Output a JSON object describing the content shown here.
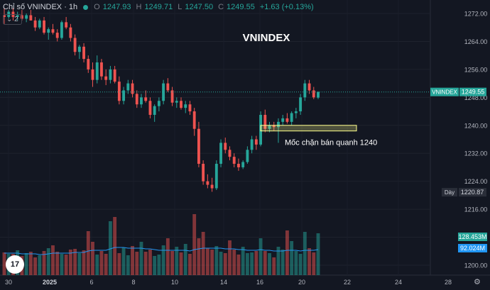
{
  "legend": {
    "title": "Chỉ số VNINDEX · 1h",
    "o_label": "O",
    "o": "1247.93",
    "h_label": "H",
    "h": "1249.71",
    "l_label": "L",
    "l": "1247.50",
    "c_label": "C",
    "c": "1249.55",
    "change": "+1.63 (+0.13%)",
    "collapse": "2"
  },
  "tv_logo": "17",
  "gear_icon": "gear-icon",
  "colors": {
    "up": "#26a69a",
    "down": "#ef5350",
    "background": "#131722",
    "annotation": "#ffff8d",
    "ma_line": "#2196f3"
  },
  "chart_data": {
    "type": "candlestick",
    "title": "VNINDEX",
    "xlabel": "",
    "ylabel": "",
    "ylim": [
      1197,
      1275
    ],
    "y_ticks": [
      "1272.00",
      "1264.00",
      "1256.00",
      "1248.00",
      "1240.00",
      "1232.00",
      "1224.00",
      "1216.00",
      "1208.00",
      "1200.00"
    ],
    "x_ticks": [
      "30",
      "2025",
      "6",
      "8",
      "10",
      "14",
      "16",
      "20",
      "22",
      "24",
      "28"
    ],
    "price_tags": [
      {
        "label": "VNINDEX",
        "value": "1249.55",
        "y": 1249.55
      },
      {
        "label": "Dày",
        "value": "1220.87",
        "y": 1220.87
      }
    ],
    "volume_tags": [
      "128.453M",
      "92.024M"
    ],
    "annotation": {
      "text": "Mốc chặn bán quanh 1240",
      "y_low": 1238.8,
      "y_high": 1239.6
    },
    "candles": [
      [
        1271.5,
        1273.5,
        1269.0,
        1271.0
      ],
      [
        1271.0,
        1273.0,
        1270.5,
        1272.5
      ],
      [
        1272.5,
        1273.5,
        1270.0,
        1271.0
      ],
      [
        1271.0,
        1272.5,
        1270.0,
        1271.5
      ],
      [
        1271.5,
        1273.0,
        1270.0,
        1270.5
      ],
      [
        1270.5,
        1272.0,
        1269.5,
        1271.5
      ],
      [
        1271.5,
        1273.0,
        1270.0,
        1270.0
      ],
      [
        1270.0,
        1271.0,
        1267.0,
        1268.0
      ],
      [
        1268.0,
        1270.5,
        1267.5,
        1270.0
      ],
      [
        1270.0,
        1271.0,
        1266.0,
        1266.5
      ],
      [
        1266.5,
        1268.0,
        1264.5,
        1267.5
      ],
      [
        1267.5,
        1269.0,
        1266.0,
        1266.5
      ],
      [
        1266.5,
        1267.5,
        1264.0,
        1265.0
      ],
      [
        1265.0,
        1270.0,
        1264.5,
        1269.5
      ],
      [
        1269.5,
        1271.0,
        1267.5,
        1268.0
      ],
      [
        1268.0,
        1269.0,
        1264.0,
        1265.0
      ],
      [
        1265.0,
        1266.0,
        1260.0,
        1261.0
      ],
      [
        1261.0,
        1263.0,
        1259.0,
        1262.5
      ],
      [
        1262.5,
        1263.5,
        1258.0,
        1259.0
      ],
      [
        1259.0,
        1260.0,
        1255.0,
        1256.0
      ],
      [
        1256.0,
        1258.0,
        1251.0,
        1253.0
      ],
      [
        1253.0,
        1260.0,
        1252.0,
        1258.0
      ],
      [
        1258.0,
        1259.0,
        1253.0,
        1254.0
      ],
      [
        1254.0,
        1256.0,
        1251.5,
        1253.0
      ],
      [
        1253.0,
        1257.0,
        1252.0,
        1256.0
      ],
      [
        1256.0,
        1257.0,
        1252.0,
        1252.5
      ],
      [
        1252.5,
        1254.0,
        1246.0,
        1247.0
      ],
      [
        1247.0,
        1251.0,
        1246.0,
        1250.0
      ],
      [
        1250.0,
        1253.0,
        1249.0,
        1252.0
      ],
      [
        1252.0,
        1253.0,
        1248.0,
        1249.0
      ],
      [
        1249.0,
        1250.0,
        1245.0,
        1246.0
      ],
      [
        1246.0,
        1249.0,
        1245.0,
        1248.0
      ],
      [
        1248.0,
        1250.0,
        1246.5,
        1247.0
      ],
      [
        1247.0,
        1248.0,
        1242.0,
        1243.0
      ],
      [
        1243.0,
        1246.0,
        1241.0,
        1245.5
      ],
      [
        1245.5,
        1248.0,
        1244.0,
        1247.0
      ],
      [
        1247.0,
        1253.0,
        1246.0,
        1252.0
      ],
      [
        1252.0,
        1253.5,
        1249.5,
        1250.0
      ],
      [
        1250.0,
        1251.0,
        1245.5,
        1246.5
      ],
      [
        1246.5,
        1248.0,
        1245.0,
        1247.0
      ],
      [
        1247.0,
        1248.0,
        1244.5,
        1245.0
      ],
      [
        1245.0,
        1247.0,
        1243.5,
        1246.0
      ],
      [
        1246.0,
        1247.0,
        1243.0,
        1244.0
      ],
      [
        1244.0,
        1245.0,
        1237.0,
        1239.0
      ],
      [
        1239.0,
        1241.0,
        1228.0,
        1229.0
      ],
      [
        1229.0,
        1230.0,
        1223.0,
        1224.0
      ],
      [
        1224.0,
        1226.0,
        1222.0,
        1223.0
      ],
      [
        1223.0,
        1225.0,
        1221.0,
        1222.0
      ],
      [
        1222.0,
        1230.0,
        1221.5,
        1229.0
      ],
      [
        1229.0,
        1236.0,
        1228.0,
        1235.0
      ],
      [
        1235.0,
        1236.5,
        1232.0,
        1233.0
      ],
      [
        1233.0,
        1234.0,
        1230.0,
        1231.0
      ],
      [
        1231.0,
        1232.0,
        1228.0,
        1229.0
      ],
      [
        1229.0,
        1230.5,
        1227.0,
        1228.0
      ],
      [
        1228.0,
        1230.0,
        1227.5,
        1229.5
      ],
      [
        1229.5,
        1234.0,
        1229.0,
        1233.0
      ],
      [
        1233.0,
        1237.0,
        1232.0,
        1236.0
      ],
      [
        1236.0,
        1237.0,
        1233.0,
        1234.5
      ],
      [
        1234.5,
        1244.0,
        1234.0,
        1243.0
      ],
      [
        1243.0,
        1244.5,
        1238.0,
        1239.0
      ],
      [
        1239.0,
        1241.0,
        1238.0,
        1240.0
      ],
      [
        1240.0,
        1241.0,
        1238.5,
        1239.5
      ],
      [
        1239.5,
        1242.0,
        1235.0,
        1241.0
      ],
      [
        1241.0,
        1243.0,
        1240.0,
        1242.0
      ],
      [
        1242.0,
        1243.5,
        1240.5,
        1241.0
      ],
      [
        1241.0,
        1244.0,
        1240.0,
        1243.5
      ],
      [
        1243.5,
        1245.0,
        1242.0,
        1244.0
      ],
      [
        1244.0,
        1249.0,
        1243.0,
        1248.0
      ],
      [
        1248.0,
        1253.0,
        1247.0,
        1252.0
      ],
      [
        1252.0,
        1253.0,
        1249.0,
        1250.0
      ],
      [
        1250.0,
        1251.0,
        1247.5,
        1248.0
      ],
      [
        1247.93,
        1249.71,
        1247.5,
        1249.55
      ]
    ],
    "volumes": [
      0.32,
      0.3,
      0.3,
      0.35,
      0.27,
      0.31,
      0.33,
      0.25,
      0.28,
      0.34,
      0.38,
      0.42,
      0.33,
      0.3,
      0.29,
      0.36,
      0.37,
      0.31,
      0.35,
      0.62,
      0.47,
      0.29,
      0.34,
      0.3,
      0.76,
      0.82,
      0.31,
      0.39,
      0.28,
      0.41,
      0.33,
      0.47,
      0.33,
      0.36,
      0.27,
      0.29,
      0.42,
      0.52,
      0.34,
      0.4,
      0.32,
      0.44,
      0.3,
      0.86,
      0.52,
      0.61,
      0.38,
      0.36,
      0.41,
      0.33,
      0.31,
      0.49,
      0.36,
      0.29,
      0.4,
      0.31,
      0.32,
      0.34,
      0.52,
      0.34,
      0.31,
      0.25,
      0.4,
      0.36,
      0.63,
      0.48,
      0.34,
      0.3,
      0.61,
      0.38,
      0.32,
      0.59
    ],
    "volume_ma": [
      0.31,
      0.31,
      0.31,
      0.31,
      0.3,
      0.3,
      0.3,
      0.3,
      0.29,
      0.29,
      0.3,
      0.31,
      0.31,
      0.31,
      0.31,
      0.31,
      0.32,
      0.32,
      0.32,
      0.34,
      0.35,
      0.35,
      0.35,
      0.35,
      0.37,
      0.39,
      0.39,
      0.39,
      0.38,
      0.38,
      0.38,
      0.38,
      0.37,
      0.37,
      0.36,
      0.35,
      0.35,
      0.35,
      0.35,
      0.35,
      0.35,
      0.35,
      0.34,
      0.36,
      0.37,
      0.38,
      0.38,
      0.38,
      0.38,
      0.38,
      0.37,
      0.37,
      0.37,
      0.36,
      0.36,
      0.35,
      0.35,
      0.35,
      0.36,
      0.35,
      0.35,
      0.34,
      0.34,
      0.34,
      0.35,
      0.35,
      0.35,
      0.34,
      0.35,
      0.35,
      0.35,
      0.36
    ]
  }
}
